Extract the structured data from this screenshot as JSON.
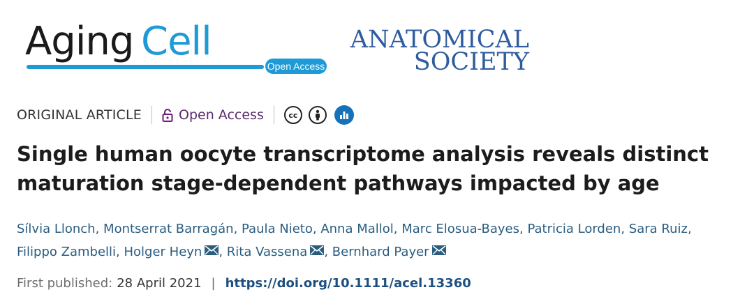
{
  "logos": {
    "journal_word1": "Aging",
    "journal_word2": "Cell",
    "open_access_badge": "Open Access",
    "society_line1": "ANATOMICAL",
    "society_line2": "SOCIETY",
    "brand_color": "#1e9ad6",
    "society_color": "#2f5c9e"
  },
  "meta": {
    "article_type": "ORIGINAL ARTICLE",
    "open_access_label": "Open Access",
    "icons": [
      "lock-icon",
      "cc-icon",
      "by-icon",
      "dimensions-icon"
    ]
  },
  "title": "Single human oocyte transcriptome analysis reveals distinct maturation stage-dependent pathways impacted by age",
  "authors": [
    {
      "name": "Sílvia Llonch",
      "email": false
    },
    {
      "name": "Montserrat Barragán",
      "email": false
    },
    {
      "name": "Paula Nieto",
      "email": false
    },
    {
      "name": "Anna Mallol",
      "email": false
    },
    {
      "name": "Marc Elosua-Bayes",
      "email": false
    },
    {
      "name": "Patricia Lorden",
      "email": false
    },
    {
      "name": "Sara Ruiz",
      "email": false
    },
    {
      "name": "Filippo Zambelli",
      "email": false
    },
    {
      "name": "Holger Heyn",
      "email": true
    },
    {
      "name": "Rita Vassena",
      "email": true
    },
    {
      "name": "Bernhard Payer",
      "email": true
    }
  ],
  "publication": {
    "label": "First published:",
    "date": "28 April 2021",
    "separator": "|",
    "doi": "https://doi.org/10.1111/acel.13360"
  }
}
